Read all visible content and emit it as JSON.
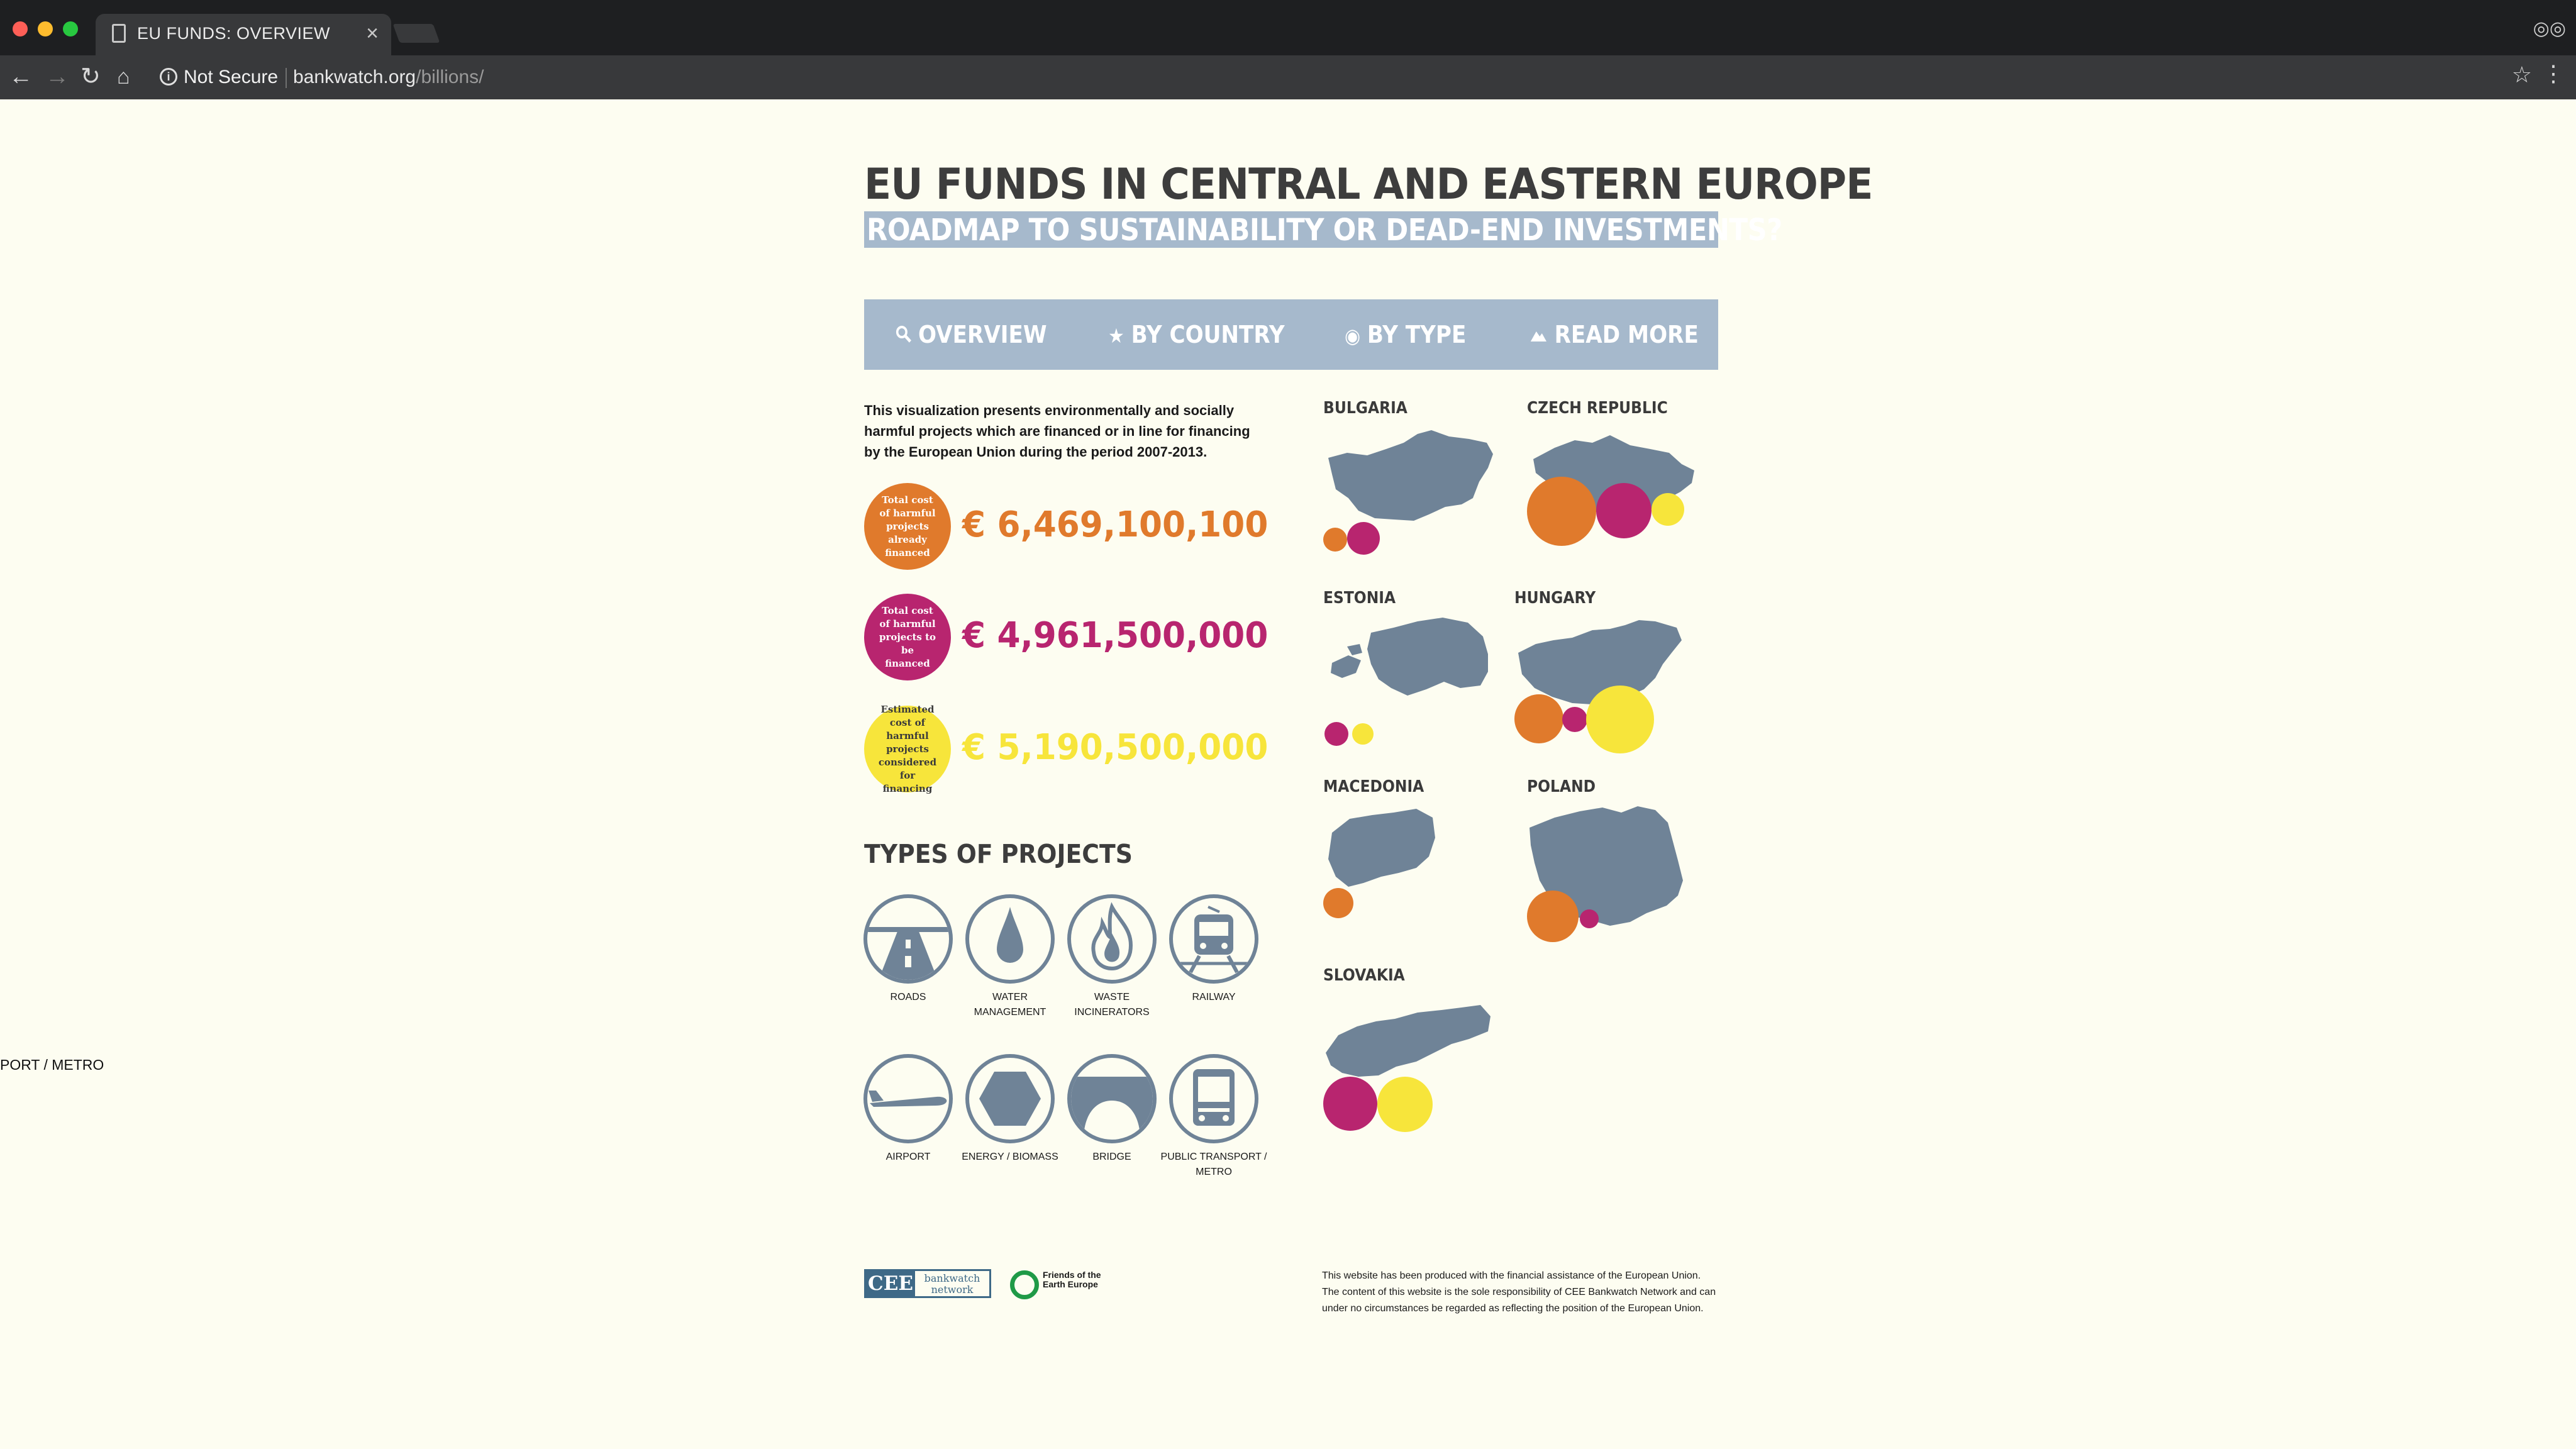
{
  "browser": {
    "tab_title": "EU FUNDS: OVERVIEW",
    "security_label": "Not Secure",
    "url_host": "bankwatch.org",
    "url_path": "/billions/"
  },
  "page": {
    "stray_text": "PORT / METRO",
    "title": "EU FUNDS IN CENTRAL AND EASTERN EUROPE",
    "subtitle": "ROADMAP TO SUSTAINABILITY OR DEAD-END INVESTMENTS?",
    "nav": [
      {
        "label": "OVERVIEW",
        "icon": "search-icon"
      },
      {
        "label": "BY COUNTRY",
        "icon": "star-icon"
      },
      {
        "label": "BY TYPE",
        "icon": "target-icon"
      },
      {
        "label": "READ MORE",
        "icon": "mountain-icon"
      }
    ],
    "intro": "This visualization presents environmentally and socially harmful projects which are financed or in line for financing by the European Union during the period 2007-2013.",
    "funds": [
      {
        "caption": "Total cost of harmful projects already financed",
        "amount": "€ 6,469,100,100",
        "color": "#e07a2c",
        "caption_color": "#ffffff"
      },
      {
        "caption": "Total cost of harmful projects to be financed",
        "amount": "€ 4,961,500,000",
        "color": "#b8256f",
        "caption_color": "#ffffff"
      },
      {
        "caption": "Estimated cost of harmful projects considered for financing",
        "amount": "€ 5,190,500,000",
        "color": "#f7e53b",
        "caption_color": "#3a3a3a"
      }
    ],
    "types_title": "TYPES OF PROJECTS",
    "project_types": [
      {
        "label": "ROADS",
        "icon": "road-icon"
      },
      {
        "label": "WATER MANAGEMENT",
        "icon": "water-drop-icon"
      },
      {
        "label": "WASTE INCINERATORS",
        "icon": "flame-icon"
      },
      {
        "label": "RAILWAY",
        "icon": "train-icon"
      },
      {
        "label": "AIRPORT",
        "icon": "airplane-icon"
      },
      {
        "label": "ENERGY / BIOMASS",
        "icon": "hexagon-icon"
      },
      {
        "label": "BRIDGE",
        "icon": "bridge-icon"
      },
      {
        "label": "PUBLIC TRANSPORT / METRO",
        "icon": "bus-icon"
      }
    ],
    "countries": [
      {
        "name": "BULGARIA"
      },
      {
        "name": "CZECH REPUBLIC"
      },
      {
        "name": "ESTONIA"
      },
      {
        "name": "HUNGARY"
      },
      {
        "name": "MACEDONIA"
      },
      {
        "name": "POLAND"
      },
      {
        "name": "SLOVAKIA"
      }
    ],
    "colors": {
      "financed": "#e07a2c",
      "to_be_financed": "#b8256f",
      "considered": "#f7e53b",
      "map": "#6f8397",
      "nav": "#a6b9cc"
    },
    "logos": {
      "cee_short": "CEE",
      "cee_long": "bankwatch network",
      "foe": "Friends of the Earth Europe"
    },
    "disclaimer": "This website has been produced with the financial assistance of the European Union. The content of this website is the sole responsibility of CEE Bankwatch Network and can under no circumstances be regarded as reflecting the position of the European Union."
  }
}
